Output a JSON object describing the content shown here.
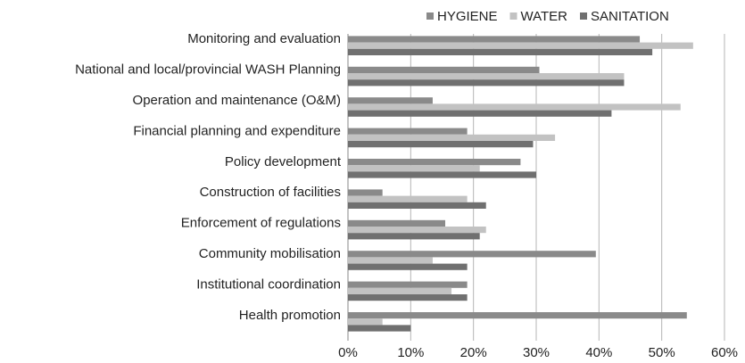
{
  "chart_data": {
    "type": "barh",
    "categories": [
      "Monitoring and evaluation",
      "National and local/provincial WASH Planning",
      "Operation and maintenance (O&M)",
      "Financial planning and expenditure",
      "Policy development",
      "Construction of facilities",
      "Enforcement of regulations",
      "Community mobilisation",
      "Institutional coordination",
      "Health promotion"
    ],
    "series": [
      {
        "name": "HYGIENE",
        "color": "#8a8a8a",
        "values": [
          46.5,
          30.5,
          13.5,
          19,
          27.5,
          5.5,
          15.5,
          39.5,
          19,
          54
        ]
      },
      {
        "name": "WATER",
        "color": "#c2c2c2",
        "values": [
          55,
          44,
          53,
          33,
          21,
          19,
          22,
          13.5,
          16.5,
          5.5
        ]
      },
      {
        "name": "SANITATION",
        "color": "#707070",
        "values": [
          48.5,
          44,
          42,
          29.5,
          30,
          22,
          21,
          19,
          19,
          10
        ]
      }
    ],
    "xlim": [
      0,
      60
    ],
    "xticks": [
      {
        "value": 0,
        "label": "0%"
      },
      {
        "value": 10,
        "label": "10%"
      },
      {
        "value": 20,
        "label": "20%"
      },
      {
        "value": 30,
        "label": "30%"
      },
      {
        "value": 40,
        "label": "40%"
      },
      {
        "value": 50,
        "label": "50%"
      },
      {
        "value": 60,
        "label": "60%"
      }
    ],
    "grid": true,
    "legend": "top"
  }
}
